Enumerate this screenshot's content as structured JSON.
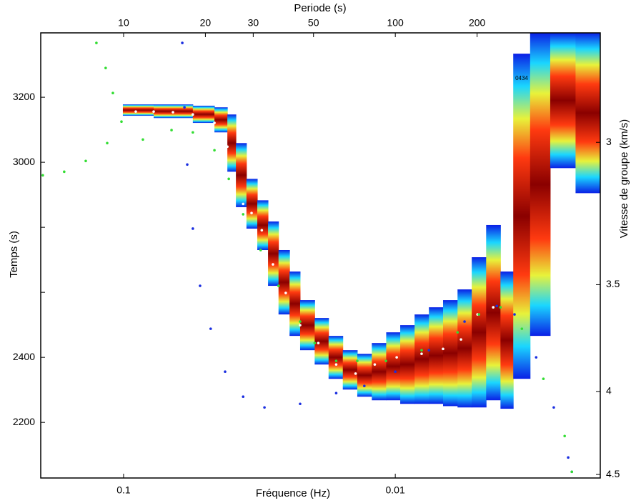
{
  "chart_data": {
    "type": "ftan",
    "title": "Periode (s)",
    "x_label": "Fréquence (Hz)",
    "y_label": "Temps (s)",
    "y2_label": "Vitesse de groupe (km/s)",
    "annotation": "0434",
    "xscale": "log",
    "xlim": [
      0.2018,
      0.00176
    ],
    "xticks": [
      0.1,
      0.01
    ],
    "x2scale": "log",
    "x2lim": [
      4.955,
      568
    ],
    "x2ticks": [
      10,
      20,
      30,
      50,
      100,
      200
    ],
    "ylim": [
      2029,
      3398
    ],
    "yticks": [
      2200,
      2400,
      {
        "value": 2600,
        "label": null
      },
      {
        "value": 2800,
        "label": null
      },
      3000,
      3200
    ],
    "y2scale": "reciprocal",
    "y2lim": [
      4.524,
      2.703
    ],
    "y2ticks": [
      3,
      3.5,
      4,
      4.5
    ],
    "energy": {
      "edges": [
        0.1006,
        0.0775,
        0.0556,
        0.0463,
        0.0415,
        0.0386,
        0.0353,
        0.0322,
        0.0294,
        0.0269,
        0.0245,
        0.0224,
        0.0198,
        0.0176,
        0.0156,
        0.0138,
        0.0122,
        0.0108,
        0.00959,
        0.00849,
        0.00752,
        0.00667,
        0.0059,
        0.00523,
        0.00463,
        0.0041,
        0.00368,
        0.00319,
        0.00269,
        0.00217,
        0.00176
      ],
      "top": [
        3178,
        3178,
        3174,
        3169,
        3147,
        3059,
        2949,
        2883,
        2818,
        2730,
        2664,
        2576,
        2521,
        2466,
        2422,
        2411,
        2444,
        2477,
        2499,
        2532,
        2554,
        2576,
        2609,
        2708,
        2807,
        2664,
        3334,
        3398,
        3398,
        3398
      ],
      "bottom": [
        3143,
        3136,
        3121,
        3092,
        2971,
        2862,
        2796,
        2730,
        2620,
        2532,
        2466,
        2422,
        2378,
        2334,
        2301,
        2279,
        2268,
        2268,
        2257,
        2257,
        2257,
        2250,
        2246,
        2246,
        2268,
        2242,
        2334,
        2466,
        2982,
        2905
      ]
    },
    "series": [
      {
        "color": "#ffffff",
        "x": [
          0.0902,
          0.0775,
          0.0658,
          0.0556,
          0.0463,
          0.0415,
          0.0394,
          0.0363,
          0.0338,
          0.031,
          0.0282,
          0.0253,
          0.0224,
          0.0192,
          0.0165,
          0.014,
          0.0119,
          0.00988,
          0.008,
          0.00667,
          0.00573,
          0.00498,
          0.00436
        ],
        "values": [
          3156,
          3156,
          3154,
          3147,
          3121,
          3048,
          2927,
          2872,
          2844,
          2791,
          2686,
          2598,
          2499,
          2444,
          2378,
          2350,
          2378,
          2400,
          2411,
          2426,
          2455,
          2532,
          2554
        ]
      },
      {
        "color": "#1a2ee0",
        "x": [
          0.0608,
          0.0597,
          0.0583,
          0.0556,
          0.0523,
          0.0478,
          0.0423,
          0.0363,
          0.0303,
          0.0224,
          0.0165,
          0.013,
          0.01,
          0.00752,
          0.00556,
          0.00423,
          0.00364,
          0.00303,
          0.00261,
          0.00231,
          0.00224
        ],
        "values": [
          3367,
          3169,
          2993,
          2796,
          2620,
          2488,
          2356,
          2279,
          2246,
          2257,
          2290,
          2312,
          2356,
          2422,
          2510,
          2558,
          2532,
          2400,
          2246,
          2092,
          2048
        ]
      },
      {
        "color": "#33dd33",
        "x": [
          0.1259,
          0.1164,
          0.1095,
          0.1018,
          0.1983,
          0.1654,
          0.1378,
          0.1149,
          0.0849,
          0.0666,
          0.0556,
          0.0463,
          0.041,
          0.0363,
          0.0313,
          0.0269,
          0.0224,
          0.0198,
          0.0165,
          0.0138,
          0.01082,
          0.008,
          0.0059,
          0.00492,
          0.0041,
          0.00342,
          0.00285,
          0.00238,
          0.00224
        ],
        "values": [
          3367,
          3290,
          3213,
          3125,
          2960,
          2971,
          3004,
          3059,
          3070,
          3099,
          3092,
          3037,
          2949,
          2840,
          2730,
          2620,
          2510,
          2444,
          2389,
          2389,
          2389,
          2422,
          2477,
          2532,
          2554,
          2488,
          2334,
          2158,
          2048
        ]
      }
    ]
  }
}
